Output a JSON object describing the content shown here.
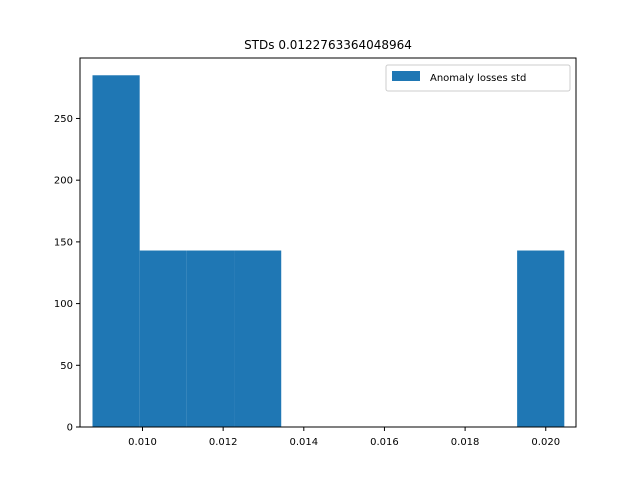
{
  "chart_data": {
    "type": "bar",
    "title": "STDs 0.0122763364048964",
    "xlabel": "",
    "ylabel": "",
    "xlim": [
      0.00845,
      0.02075
    ],
    "ylim": [
      0,
      299
    ],
    "xticks": [
      "0.010",
      "0.012",
      "0.014",
      "0.016",
      "0.018",
      "0.020"
    ],
    "xtick_values": [
      0.01,
      0.012,
      0.014,
      0.016,
      0.018,
      0.02
    ],
    "yticks": [
      "0",
      "50",
      "100",
      "150",
      "200",
      "250"
    ],
    "ytick_values": [
      0,
      50,
      100,
      150,
      200,
      250
    ],
    "bin_edges": [
      0.00876,
      0.00993,
      0.0111,
      0.01227,
      0.01344,
      0.01461,
      0.01578,
      0.01695,
      0.01812,
      0.01929,
      0.02046
    ],
    "values": [
      285,
      143,
      143,
      143,
      0,
      0,
      0,
      0,
      0,
      143
    ],
    "series": [
      {
        "name": "Anomaly losses std",
        "color": "#1f77b4"
      }
    ],
    "legend_position": "top-right",
    "grid": false
  }
}
